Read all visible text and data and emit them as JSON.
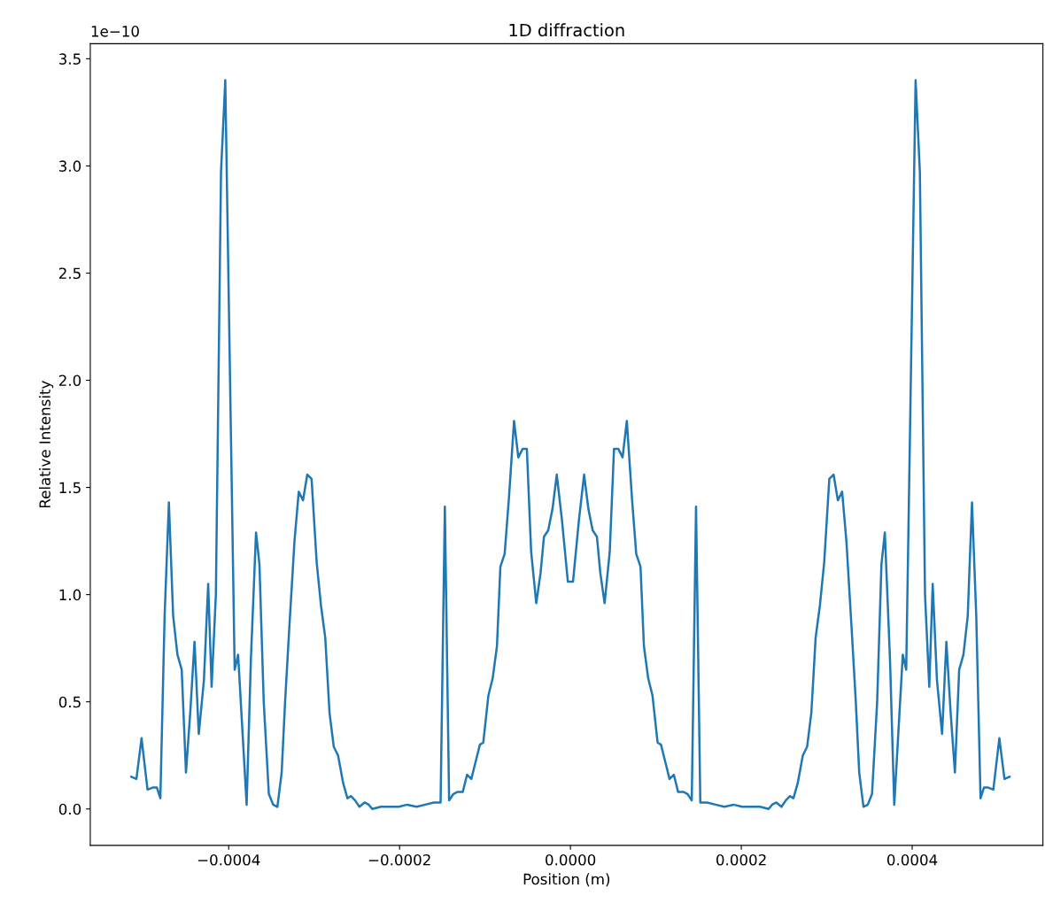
{
  "chart_data": {
    "type": "line",
    "title": "1D diffraction",
    "xlabel": "Position (m)",
    "ylabel": "Relative Intensity",
    "annotations": [
      "1e−10"
    ],
    "xlim": [
      -0.000562,
      0.000553
    ],
    "xticks": [
      {
        "value": -0.0004,
        "label": "−0.0004"
      },
      {
        "value": -0.0002,
        "label": "−0.0002"
      },
      {
        "value": 0,
        "label": "0.0000"
      },
      {
        "value": 0.0002,
        "label": "0.0002"
      },
      {
        "value": 0.0004,
        "label": "0.0004"
      }
    ],
    "ylim": [
      -0.17,
      3.57
    ],
    "yticks": [
      {
        "value": 0,
        "label": "0.0"
      },
      0.5,
      {
        "value": 1,
        "label": "1.0"
      },
      1.5,
      {
        "value": 2,
        "label": "2.0"
      },
      2.5,
      {
        "value": 3,
        "label": "3.0"
      },
      3.5
    ],
    "grid": false,
    "series": [
      {
        "color": "#1f77b4",
        "x": [
          -0.000514,
          -0.000508,
          -0.000502,
          -0.000495,
          -0.000489,
          -0.000484,
          -0.00048,
          -0.000475,
          -0.00047,
          -0.000465,
          -0.00046,
          -0.000455,
          -0.00045,
          -0.000445,
          -0.00044,
          -0.000435,
          -0.000429,
          -0.000424,
          -0.00042,
          -0.000415,
          -0.000409,
          -0.000404,
          -0.000393,
          -0.000389,
          -0.000383,
          -0.000379,
          -0.000374,
          -0.000368,
          -0.000364,
          -0.000359,
          -0.000353,
          -0.000348,
          -0.000343,
          -0.000338,
          -0.000334,
          -0.000329,
          -0.000323,
          -0.000318,
          -0.000313,
          -0.000308,
          -0.000303,
          -0.000297,
          -0.000292,
          -0.000287,
          -0.000282,
          -0.000277,
          -0.000272,
          -0.000266,
          -0.000261,
          -0.000257,
          -0.000252,
          -0.000247,
          -0.000241,
          -0.000236,
          -0.000232,
          -0.000222,
          -0.000211,
          -0.000201,
          -0.000191,
          -0.00018,
          -0.00017,
          -0.00016,
          -0.000152,
          -0.000147,
          -0.000142,
          -0.000137,
          -0.000132,
          -0.000126,
          -0.000121,
          -0.000116,
          -0.000111,
          -0.000106,
          -0.000102,
          -9.6e-05,
          -9.1e-05,
          -8.6e-05,
          -8.2e-05,
          -7.7e-05,
          -7.2e-05,
          -6.6e-05,
          -6.1e-05,
          -5.6e-05,
          -5.1e-05,
          -4.6e-05,
          -4e-05,
          -3.5e-05,
          -3.1e-05,
          -2.6e-05,
          -2.1e-05,
          -1.6e-05,
          -1e-05,
          -3e-06,
          3e-06,
          1e-05,
          1.6e-05,
          2.1e-05,
          2.6e-05,
          3.1e-05,
          3.5e-05,
          4e-05,
          4.6e-05,
          5.1e-05,
          5.6e-05,
          6.1e-05,
          6.6e-05,
          7.2e-05,
          7.7e-05,
          8.2e-05,
          8.6e-05,
          9.1e-05,
          9.6e-05,
          0.000102,
          0.000106,
          0.000111,
          0.000116,
          0.000121,
          0.000126,
          0.000132,
          0.000137,
          0.000142,
          0.000147,
          0.000152,
          0.00016,
          0.00017,
          0.00018,
          0.000191,
          0.000201,
          0.000211,
          0.000222,
          0.000232,
          0.000236,
          0.000241,
          0.000247,
          0.000252,
          0.000257,
          0.000261,
          0.000266,
          0.000272,
          0.000277,
          0.000282,
          0.000287,
          0.000292,
          0.000297,
          0.000303,
          0.000308,
          0.000313,
          0.000318,
          0.000323,
          0.000329,
          0.000334,
          0.000338,
          0.000343,
          0.000348,
          0.000353,
          0.000359,
          0.000364,
          0.000368,
          0.000374,
          0.000379,
          0.000383,
          0.000389,
          0.000393,
          0.000404,
          0.000409,
          0.000415,
          0.00042,
          0.000424,
          0.000429,
          0.000435,
          0.00044,
          0.000445,
          0.00045,
          0.000455,
          0.00046,
          0.000465,
          0.00047,
          0.000475,
          0.00048,
          0.000484,
          0.000489,
          0.000495,
          0.000502,
          0.000508,
          0.000514
        ],
        "values": [
          0.15,
          0.14,
          0.33,
          0.09,
          0.1,
          0.1,
          0.05,
          0.9,
          1.43,
          0.9,
          0.72,
          0.65,
          0.17,
          0.45,
          0.78,
          0.35,
          0.6,
          1.05,
          0.57,
          1.0,
          2.97,
          3.4,
          0.65,
          0.72,
          0.3,
          0.02,
          0.7,
          1.29,
          1.14,
          0.5,
          0.07,
          0.02,
          0.01,
          0.17,
          0.5,
          0.85,
          1.25,
          1.48,
          1.44,
          1.56,
          1.54,
          1.15,
          0.95,
          0.8,
          0.45,
          0.29,
          0.25,
          0.12,
          0.05,
          0.06,
          0.04,
          0.01,
          0.03,
          0.02,
          0.0,
          0.01,
          0.01,
          0.01,
          0.02,
          0.01,
          0.02,
          0.03,
          0.03,
          1.41,
          0.04,
          0.07,
          0.08,
          0.08,
          0.16,
          0.14,
          0.22,
          0.3,
          0.31,
          0.53,
          0.61,
          0.76,
          1.13,
          1.19,
          1.45,
          1.81,
          1.64,
          1.68,
          1.68,
          1.2,
          0.96,
          1.1,
          1.27,
          1.3,
          1.4,
          1.56,
          1.35,
          1.06,
          1.06,
          1.35,
          1.56,
          1.4,
          1.3,
          1.27,
          1.1,
          0.96,
          1.2,
          1.68,
          1.68,
          1.64,
          1.81,
          1.45,
          1.19,
          1.13,
          0.76,
          0.61,
          0.53,
          0.31,
          0.3,
          0.22,
          0.14,
          0.16,
          0.08,
          0.08,
          0.07,
          0.04,
          1.41,
          0.03,
          0.03,
          0.02,
          0.01,
          0.02,
          0.01,
          0.01,
          0.01,
          0.0,
          0.02,
          0.03,
          0.01,
          0.04,
          0.06,
          0.05,
          0.12,
          0.25,
          0.29,
          0.45,
          0.8,
          0.95,
          1.15,
          1.54,
          1.56,
          1.44,
          1.48,
          1.25,
          0.85,
          0.5,
          0.17,
          0.01,
          0.02,
          0.07,
          0.5,
          1.14,
          1.29,
          0.7,
          0.02,
          0.3,
          0.72,
          0.65,
          3.4,
          2.97,
          1.0,
          0.57,
          1.05,
          0.6,
          0.35,
          0.78,
          0.45,
          0.17,
          0.65,
          0.72,
          0.9,
          1.43,
          0.9,
          0.05,
          0.1,
          0.1,
          0.09,
          0.33,
          0.14,
          0.15
        ]
      }
    ]
  }
}
